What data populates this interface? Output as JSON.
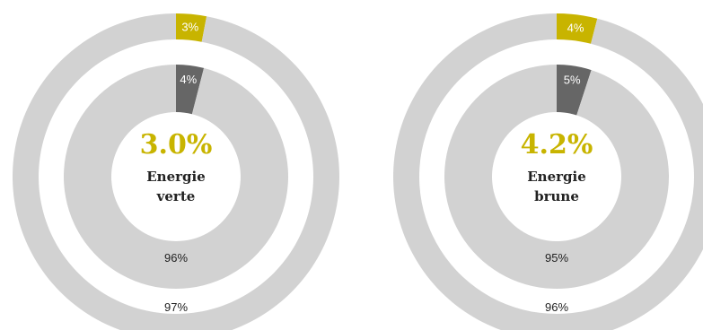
{
  "colors": {
    "green_share": "#c8b400",
    "brown_share": "#666666",
    "rest": "#d2d2d2",
    "gap": "#ffffff",
    "label_light": "#ffffff",
    "label_dark": "#222222"
  },
  "chart_data": [
    {
      "type": "pie",
      "variant": "nested-donut",
      "center": {
        "value": "3.0%",
        "label_lines": [
          "Energie",
          "verte"
        ]
      },
      "rings": [
        {
          "ring": "outer",
          "slices": [
            {
              "label": "3%",
              "value": 3
            },
            {
              "label": "97%",
              "value": 97
            }
          ]
        },
        {
          "ring": "inner",
          "slices": [
            {
              "label": "4%",
              "value": 4
            },
            {
              "label": "96%",
              "value": 96
            }
          ]
        }
      ]
    },
    {
      "type": "pie",
      "variant": "nested-donut",
      "center": {
        "value": "4.2%",
        "label_lines": [
          "Energie",
          "brune"
        ]
      },
      "rings": [
        {
          "ring": "outer",
          "slices": [
            {
              "label": "4%",
              "value": 4
            },
            {
              "label": "96%",
              "value": 96
            }
          ]
        },
        {
          "ring": "inner",
          "slices": [
            {
              "label": "5%",
              "value": 5
            },
            {
              "label": "95%",
              "value": 95
            }
          ]
        }
      ]
    }
  ]
}
